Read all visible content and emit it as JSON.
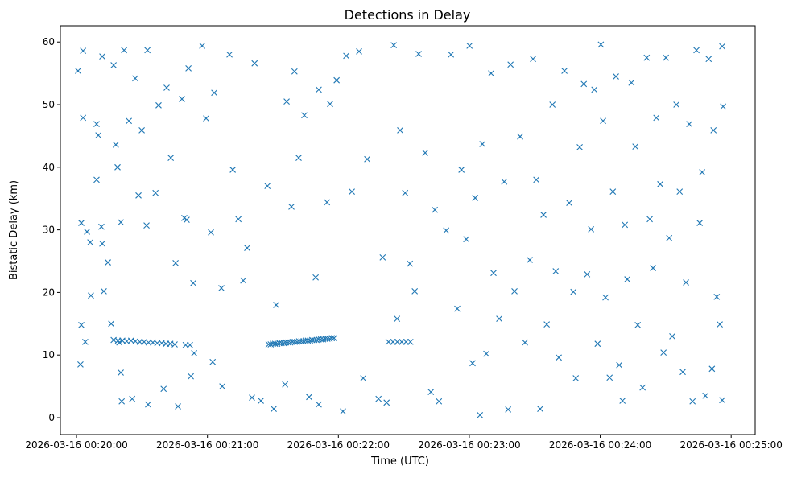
{
  "chart_data": {
    "type": "scatter",
    "title": "Detections in Delay",
    "xlabel": "Time (UTC)",
    "ylabel": "Bistatic Delay (km)",
    "x_unit": "seconds after 2026-03-16 00:20:00",
    "xlim": [
      -7.4,
      311
    ],
    "ylim": [
      -2.7,
      62.6
    ],
    "grid": false,
    "marker": "x",
    "color": "#1f77b4",
    "x_ticks": [
      {
        "value": 0,
        "label": "2026-03-16 00:20:00"
      },
      {
        "value": 60,
        "label": "2026-03-16 00:21:00"
      },
      {
        "value": 120,
        "label": "2026-03-16 00:22:00"
      },
      {
        "value": 180,
        "label": "2026-03-16 00:23:00"
      },
      {
        "value": 240,
        "label": "2026-03-16 00:24:00"
      },
      {
        "value": 300,
        "label": "2026-03-16 00:25:00"
      }
    ],
    "y_ticks": [
      {
        "value": 0,
        "label": "0"
      },
      {
        "value": 10,
        "label": "10"
      },
      {
        "value": 20,
        "label": "20"
      },
      {
        "value": 30,
        "label": "30"
      },
      {
        "value": 40,
        "label": "40"
      },
      {
        "value": 50,
        "label": "50"
      },
      {
        "value": 60,
        "label": "60"
      }
    ],
    "points": [
      [
        0.7,
        55.4
      ],
      [
        2.2,
        31.1
      ],
      [
        1.8,
        8.5
      ],
      [
        3,
        58.6
      ],
      [
        3,
        47.9
      ],
      [
        2.2,
        14.8
      ],
      [
        4,
        12.1
      ],
      [
        4.8,
        29.7
      ],
      [
        6.3,
        28
      ],
      [
        6.6,
        19.5
      ],
      [
        9.2,
        46.9
      ],
      [
        9.2,
        38
      ],
      [
        10,
        45.1
      ],
      [
        11.4,
        30.5
      ],
      [
        11.8,
        57.7
      ],
      [
        11.8,
        27.8
      ],
      [
        12.5,
        20.2
      ],
      [
        14.4,
        24.8
      ],
      [
        15.9,
        15
      ],
      [
        17,
        56.3
      ],
      [
        18,
        43.6
      ],
      [
        18.8,
        40
      ],
      [
        20.3,
        31.2
      ],
      [
        19.6,
        12
      ],
      [
        20.3,
        7.2
      ],
      [
        20.7,
        2.6
      ],
      [
        21.8,
        58.7
      ],
      [
        24,
        47.4
      ],
      [
        25.5,
        3
      ],
      [
        26.9,
        54.2
      ],
      [
        28.4,
        35.5
      ],
      [
        29.9,
        45.9
      ],
      [
        32.5,
        58.7
      ],
      [
        32.1,
        30.7
      ],
      [
        32.8,
        2.1
      ],
      [
        36.2,
        35.9
      ],
      [
        37.6,
        49.9
      ],
      [
        39.9,
        4.6
      ],
      [
        41.3,
        52.7
      ],
      [
        43.2,
        41.5
      ],
      [
        45.4,
        24.7
      ],
      [
        46.5,
        1.8
      ],
      [
        48.3,
        50.9
      ],
      [
        49.4,
        31.9
      ],
      [
        50.5,
        31.6
      ],
      [
        51.3,
        55.8
      ],
      [
        53.5,
        21.5
      ],
      [
        52.4,
        6.6
      ],
      [
        53.9,
        10.3
      ],
      [
        57.6,
        59.4
      ],
      [
        59.4,
        47.8
      ],
      [
        61.6,
        29.6
      ],
      [
        62.4,
        8.9
      ],
      [
        63.1,
        51.9
      ],
      [
        66.4,
        20.7
      ],
      [
        66.8,
        5
      ],
      [
        70.1,
        58
      ],
      [
        71.6,
        39.6
      ],
      [
        74.2,
        31.7
      ],
      [
        76.4,
        21.9
      ],
      [
        78.2,
        27.1
      ],
      [
        80.4,
        3.2
      ],
      [
        81.6,
        56.6
      ],
      [
        84.5,
        2.7
      ],
      [
        87.5,
        37
      ],
      [
        90.4,
        1.4
      ],
      [
        91.5,
        18
      ],
      [
        95.6,
        5.3
      ],
      [
        96.3,
        50.5
      ],
      [
        98.5,
        33.7
      ],
      [
        99.9,
        55.3
      ],
      [
        101.8,
        41.5
      ],
      [
        104.4,
        48.3
      ],
      [
        106.6,
        3.3
      ],
      [
        109.6,
        22.4
      ],
      [
        111,
        52.4
      ],
      [
        111,
        2.1
      ],
      [
        114.8,
        34.4
      ],
      [
        116.2,
        50.1
      ],
      [
        119.2,
        53.9
      ],
      [
        122.1,
        1
      ],
      [
        123.6,
        57.8
      ],
      [
        126.2,
        36.1
      ],
      [
        129.5,
        58.5
      ],
      [
        131.4,
        6.3
      ],
      [
        133.2,
        41.3
      ],
      [
        138.4,
        3
      ],
      [
        140.3,
        25.6
      ],
      [
        142.1,
        2.4
      ],
      [
        145.4,
        59.5
      ],
      [
        146.9,
        15.8
      ],
      [
        148.3,
        45.9
      ],
      [
        150.6,
        35.9
      ],
      [
        152.8,
        24.6
      ],
      [
        155,
        20.2
      ],
      [
        156.8,
        58.1
      ],
      [
        159.8,
        42.3
      ],
      [
        162.4,
        4.1
      ],
      [
        164.2,
        33.2
      ],
      [
        166.1,
        2.6
      ],
      [
        169.4,
        29.9
      ],
      [
        171.6,
        58
      ],
      [
        174.5,
        17.4
      ],
      [
        176.4,
        39.6
      ],
      [
        178.6,
        28.5
      ],
      [
        180.1,
        59.4
      ],
      [
        181.5,
        8.7
      ],
      [
        182.7,
        35.1
      ],
      [
        184.9,
        0.4
      ],
      [
        186,
        43.7
      ],
      [
        187.8,
        10.2
      ],
      [
        190,
        55
      ],
      [
        191.1,
        23.1
      ],
      [
        193.7,
        15.8
      ],
      [
        196,
        37.7
      ],
      [
        197.8,
        1.3
      ],
      [
        198.9,
        56.4
      ],
      [
        200.7,
        20.2
      ],
      [
        203.3,
        44.9
      ],
      [
        205.5,
        12
      ],
      [
        207.7,
        25.2
      ],
      [
        209.2,
        57.3
      ],
      [
        210.7,
        38
      ],
      [
        212.5,
        1.4
      ],
      [
        214,
        32.4
      ],
      [
        215.5,
        14.9
      ],
      [
        218.1,
        50
      ],
      [
        219.6,
        23.4
      ],
      [
        221,
        9.6
      ],
      [
        223.6,
        55.4
      ],
      [
        225.8,
        34.3
      ],
      [
        227.7,
        20.1
      ],
      [
        228.8,
        6.3
      ],
      [
        230.6,
        43.2
      ],
      [
        232.5,
        53.3
      ],
      [
        234,
        22.9
      ],
      [
        235.8,
        30.1
      ],
      [
        237.3,
        52.4
      ],
      [
        238.8,
        11.8
      ],
      [
        240.3,
        59.6
      ],
      [
        241.3,
        47.4
      ],
      [
        242.4,
        19.2
      ],
      [
        244.3,
        6.4
      ],
      [
        245.8,
        36.1
      ],
      [
        247.2,
        54.5
      ],
      [
        248.7,
        8.4
      ],
      [
        250.2,
        2.7
      ],
      [
        251.3,
        30.8
      ],
      [
        252.4,
        22.1
      ],
      [
        254.3,
        53.5
      ],
      [
        256.1,
        43.3
      ],
      [
        257.2,
        14.8
      ],
      [
        259.4,
        4.8
      ],
      [
        261.3,
        57.5
      ],
      [
        262.7,
        31.7
      ],
      [
        264.2,
        23.9
      ],
      [
        265.7,
        47.9
      ],
      [
        267.5,
        37.3
      ],
      [
        269,
        10.4
      ],
      [
        270.1,
        57.5
      ],
      [
        271.6,
        28.7
      ],
      [
        273,
        13
      ],
      [
        274.9,
        50
      ],
      [
        276.4,
        36.1
      ],
      [
        277.8,
        7.3
      ],
      [
        279.3,
        21.6
      ],
      [
        280.8,
        46.9
      ],
      [
        282.3,
        2.6
      ],
      [
        284.1,
        58.7
      ],
      [
        285.6,
        31.1
      ],
      [
        286.7,
        39.2
      ],
      [
        288.2,
        3.5
      ],
      [
        289.7,
        57.3
      ],
      [
        291.2,
        7.8
      ],
      [
        291.9,
        45.9
      ],
      [
        293.4,
        19.3
      ],
      [
        294.8,
        14.9
      ],
      [
        295.9,
        59.3
      ],
      [
        296.3,
        49.7
      ],
      [
        295.9,
        2.8
      ],
      [
        17,
        12.4
      ],
      [
        19,
        12.3
      ],
      [
        21,
        12.3
      ],
      [
        23,
        12.2
      ],
      [
        25,
        12.3
      ],
      [
        27,
        12.2
      ],
      [
        29,
        12.1
      ],
      [
        31,
        12.1
      ],
      [
        33,
        12.0
      ],
      [
        35,
        12.0
      ],
      [
        37,
        11.9
      ],
      [
        39,
        11.9
      ],
      [
        41,
        11.8
      ],
      [
        43,
        11.8
      ],
      [
        45,
        11.7
      ],
      [
        50,
        11.6
      ],
      [
        52,
        11.6
      ],
      [
        88,
        11.7
      ],
      [
        89,
        11.7
      ],
      [
        90,
        11.8
      ],
      [
        91,
        11.8
      ],
      [
        92,
        11.8
      ],
      [
        93,
        11.9
      ],
      [
        94,
        11.9
      ],
      [
        95,
        11.9
      ],
      [
        96,
        12.0
      ],
      [
        97,
        12.0
      ],
      [
        98,
        12.0
      ],
      [
        99,
        12.1
      ],
      [
        100,
        12.1
      ],
      [
        101,
        12.1
      ],
      [
        102,
        12.2
      ],
      [
        103,
        12.2
      ],
      [
        104,
        12.2
      ],
      [
        105,
        12.3
      ],
      [
        106,
        12.3
      ],
      [
        107,
        12.3
      ],
      [
        108,
        12.4
      ],
      [
        109,
        12.4
      ],
      [
        110,
        12.4
      ],
      [
        111,
        12.5
      ],
      [
        112,
        12.5
      ],
      [
        113,
        12.5
      ],
      [
        114,
        12.6
      ],
      [
        115,
        12.6
      ],
      [
        116,
        12.6
      ],
      [
        117,
        12.7
      ],
      [
        118,
        12.7
      ],
      [
        143,
        12.1
      ],
      [
        145,
        12.1
      ],
      [
        147,
        12.1
      ],
      [
        149,
        12.1
      ],
      [
        151,
        12.1
      ],
      [
        153,
        12.1
      ]
    ]
  }
}
